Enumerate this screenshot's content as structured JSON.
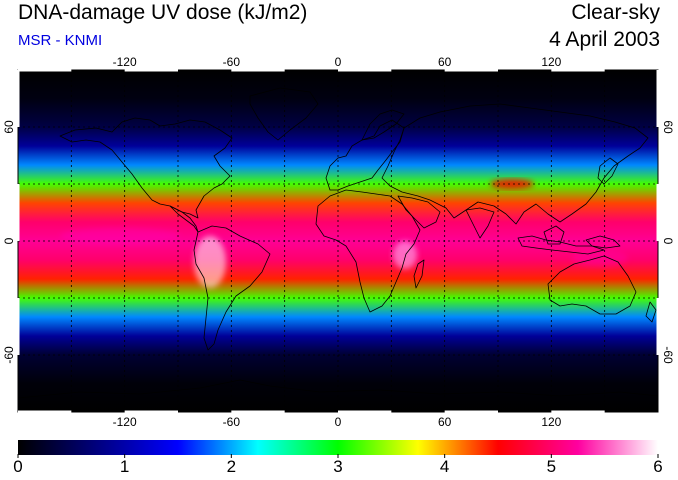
{
  "header": {
    "title": "DNA-damage UV dose (kJ/m2)",
    "subtitle": "MSR - KNMI",
    "condition": "Clear-sky",
    "date": "4 April 2003"
  },
  "map": {
    "projection": "equirectangular",
    "lon_range": [
      -180,
      180
    ],
    "lat_range": [
      -90,
      90
    ],
    "top_lon_ticks": [
      "-120",
      "-60",
      "0",
      "60",
      "120"
    ],
    "bottom_lon_ticks": [
      "-120",
      "-60",
      "0",
      "60",
      "120"
    ],
    "left_lat_ticks": [
      "60",
      "0",
      "-60"
    ],
    "right_lat_ticks": [
      "60",
      "0",
      "-60"
    ],
    "lon_tick_values": [
      -120,
      -60,
      0,
      60,
      120
    ],
    "lat_tick_values": [
      60,
      0,
      -60
    ],
    "grid_lons": [
      -150,
      -120,
      -90,
      -60,
      -30,
      0,
      30,
      60,
      90,
      120,
      150
    ],
    "grid_lats": [
      -60,
      -30,
      0,
      30,
      60
    ]
  },
  "chart_data": {
    "type": "heatmap",
    "title": "DNA-damage UV dose (kJ/m2)",
    "variable": "DNA-damage UV dose",
    "units": "kJ/m2",
    "zonal_profile": {
      "lat": [
        90,
        75,
        60,
        50,
        40,
        30,
        20,
        10,
        0,
        -10,
        -20,
        -30,
        -40,
        -50,
        -60,
        -75,
        -90
      ],
      "dose": [
        0.0,
        0.1,
        0.4,
        0.9,
        1.9,
        3.2,
        4.3,
        5.0,
        5.2,
        5.0,
        4.4,
        3.2,
        1.9,
        0.9,
        0.3,
        0.05,
        0.0
      ]
    }
  },
  "colorbar": {
    "min": 0,
    "max": 6,
    "labels": [
      "0",
      "1",
      "2",
      "3",
      "4",
      "5",
      "6"
    ],
    "stops": [
      "#000000",
      "#000080",
      "#0000ff",
      "#00ffff",
      "#00ff00",
      "#ffff00",
      "#ff0000",
      "#ff00a0",
      "#ffffff"
    ]
  }
}
